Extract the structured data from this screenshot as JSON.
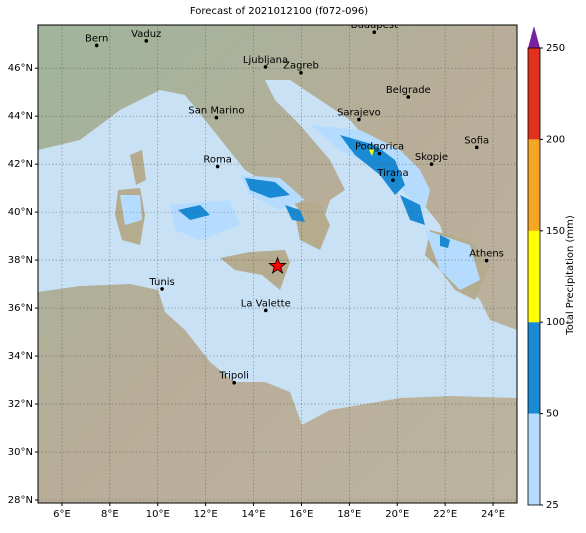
{
  "map": {
    "title": "Forecast of 2021012100 (f072-096)",
    "xlim": [
      5,
      25
    ],
    "ylim": [
      27.875,
      47.8
    ],
    "xticks": [
      {
        "value": 6,
        "label": "6°E"
      },
      {
        "value": 8,
        "label": "8°E"
      },
      {
        "value": 10,
        "label": "10°E"
      },
      {
        "value": 12,
        "label": "12°E"
      },
      {
        "value": 14,
        "label": "14°E"
      },
      {
        "value": 16,
        "label": "16°E"
      },
      {
        "value": 18,
        "label": "18°E"
      },
      {
        "value": 20,
        "label": "20°E"
      },
      {
        "value": 22,
        "label": "22°E"
      },
      {
        "value": 24,
        "label": "24°E"
      }
    ],
    "yticks": [
      {
        "value": 28,
        "label": "28°N"
      },
      {
        "value": 30,
        "label": "30°N"
      },
      {
        "value": 32,
        "label": "32°N"
      },
      {
        "value": 34,
        "label": "34°N"
      },
      {
        "value": 36,
        "label": "36°N"
      },
      {
        "value": 38,
        "label": "38°N"
      },
      {
        "value": 40,
        "label": "40°N"
      },
      {
        "value": 42,
        "label": "42°N"
      },
      {
        "value": 44,
        "label": "44°N"
      },
      {
        "value": 46,
        "label": "46°N"
      }
    ],
    "cities": [
      {
        "name": "Bern",
        "lon": 7.45,
        "lat": 46.95
      },
      {
        "name": "Vaduz",
        "lon": 9.52,
        "lat": 47.14
      },
      {
        "name": "Budapest",
        "lon": 19.04,
        "lat": 47.5
      },
      {
        "name": "Ljubljana",
        "lon": 14.5,
        "lat": 46.05
      },
      {
        "name": "Zagreb",
        "lon": 15.98,
        "lat": 45.81
      },
      {
        "name": "Belgrade",
        "lon": 20.46,
        "lat": 44.8
      },
      {
        "name": "San Marino",
        "lon": 12.45,
        "lat": 43.94
      },
      {
        "name": "Sarajevo",
        "lon": 18.4,
        "lat": 43.86
      },
      {
        "name": "Podgorica",
        "lon": 19.26,
        "lat": 42.44
      },
      {
        "name": "Sofia",
        "lon": 23.32,
        "lat": 42.7
      },
      {
        "name": "Skopje",
        "lon": 21.43,
        "lat": 42.0
      },
      {
        "name": "Roma",
        "lon": 12.5,
        "lat": 41.9
      },
      {
        "name": "Tirana",
        "lon": 19.82,
        "lat": 41.33
      },
      {
        "name": "Athens",
        "lon": 23.73,
        "lat": 37.98
      },
      {
        "name": "Tunis",
        "lon": 10.18,
        "lat": 36.8
      },
      {
        "name": "La Valette",
        "lon": 14.51,
        "lat": 35.9
      },
      {
        "name": "Tripoli",
        "lon": 13.19,
        "lat": 32.89
      }
    ],
    "star": {
      "lon": 15.0,
      "lat": 37.75,
      "color": "#ff0000"
    }
  },
  "colorbar": {
    "label": "Total Precipitation (mm)",
    "ticks": [
      25,
      50,
      100,
      150,
      200,
      250
    ],
    "colors": [
      "#b5dcff",
      "#1a8ad4",
      "#ffff00",
      "#f5a623",
      "#e0301e"
    ],
    "extend_color": "#7b1fa2"
  }
}
